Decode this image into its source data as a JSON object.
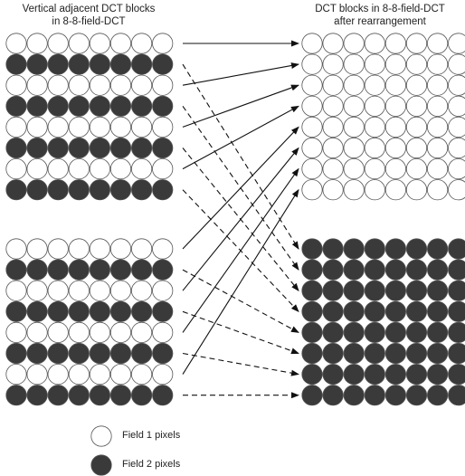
{
  "titles": {
    "left_line1": "Vertical adjacent DCT blocks",
    "left_line2": "in 8-8-field-DCT",
    "right_line1": "DCT blocks in 8-8-field-DCT",
    "right_line2": "after rearrangement"
  },
  "legend": [
    {
      "label": "Field 1 pixels",
      "fill": "#ffffff"
    },
    {
      "label": "Field 2 pixels",
      "fill": "#3a3a3a"
    }
  ],
  "colors": {
    "field1": "#ffffff",
    "field2": "#3a3a3a",
    "stroke": "#555555",
    "arrow": "#111111"
  }
}
